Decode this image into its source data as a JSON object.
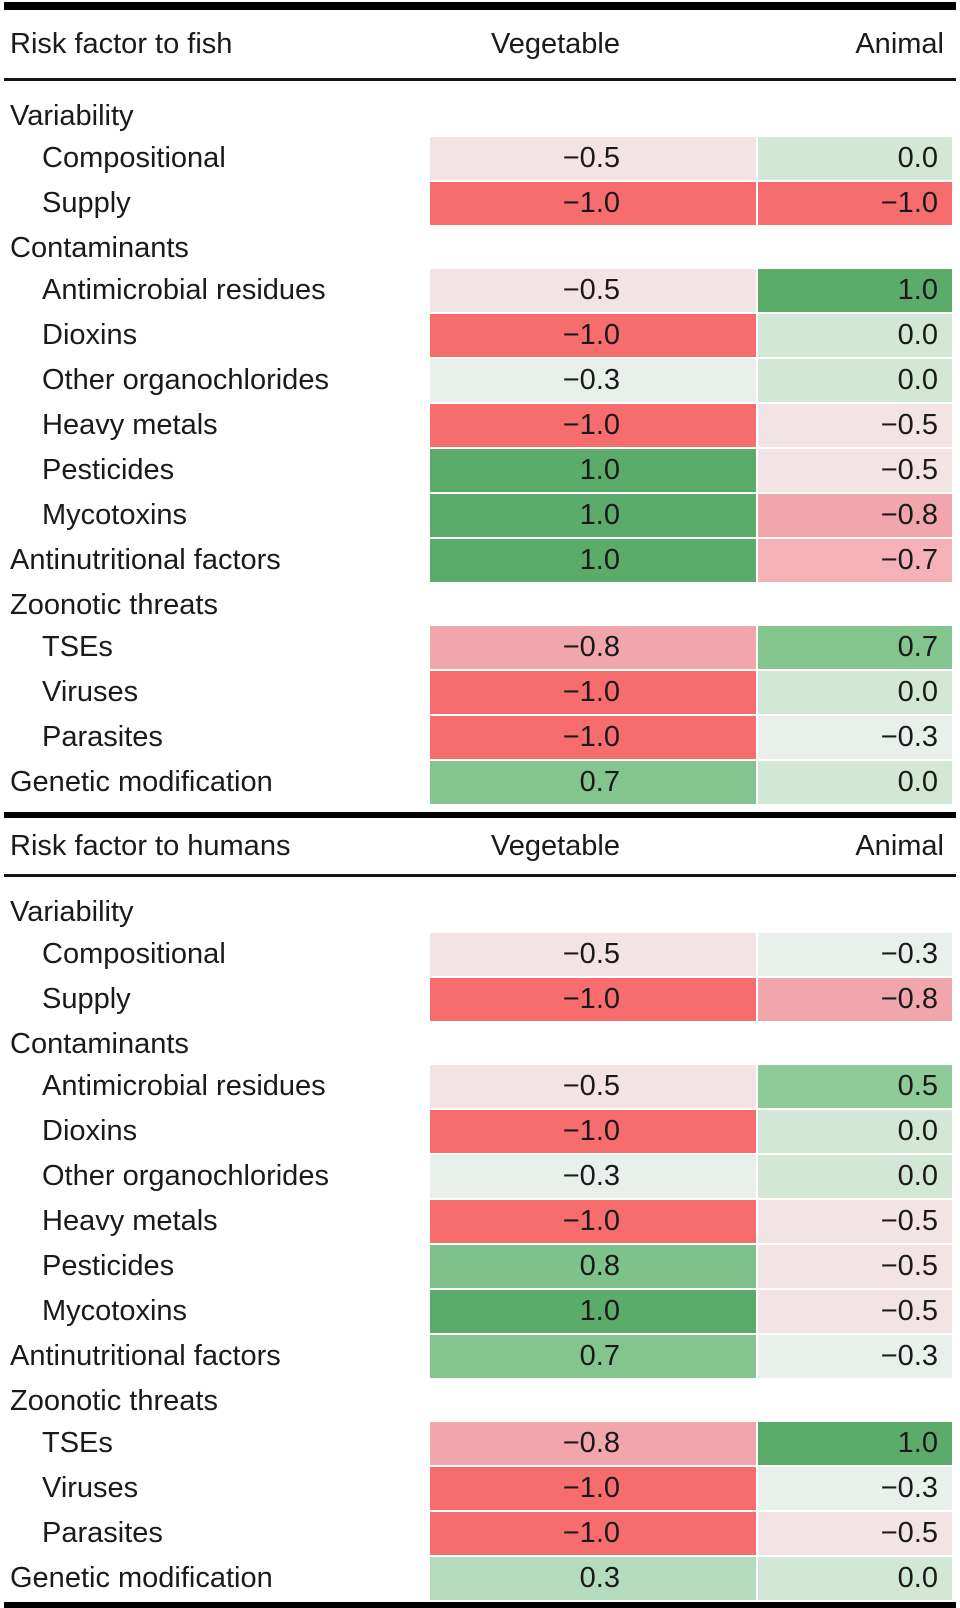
{
  "page": {
    "background": "#ffffff",
    "text_color": "#1a1a1a",
    "rule_color": "#000000"
  },
  "value_colors": {
    "−1.0": "#f76d6d",
    "−0.8": "#f1a6ab",
    "−0.7": "#f5b2b6",
    "−0.5": "#f2e3e4",
    "−0.3": "#e9efeb",
    "0.0": "#d2e7d6",
    "0.3": "#b4dbbc",
    "0.5": "#8fca99",
    "0.7": "#83c48f",
    "0.8": "#7dc28a",
    "1.0": "#5bac6a"
  },
  "tables": [
    {
      "header": {
        "risk_label": "Risk factor to fish",
        "col1": "Vegetable",
        "col2": "Animal"
      },
      "rows": [
        {
          "type": "group",
          "label": "Variability"
        },
        {
          "type": "data",
          "indent": true,
          "label": "Compositional",
          "vegetable": "−0.5",
          "animal": "0.0"
        },
        {
          "type": "data",
          "indent": true,
          "label": "Supply",
          "vegetable": "−1.0",
          "animal": "−1.0"
        },
        {
          "type": "group",
          "label": "Contaminants"
        },
        {
          "type": "data",
          "indent": true,
          "label": "Antimicrobial residues",
          "vegetable": "−0.5",
          "animal": "1.0"
        },
        {
          "type": "data",
          "indent": true,
          "label": "Dioxins",
          "vegetable": "−1.0",
          "animal": "0.0"
        },
        {
          "type": "data",
          "indent": true,
          "label": "Other organochlorides",
          "vegetable": "−0.3",
          "animal": "0.0"
        },
        {
          "type": "data",
          "indent": true,
          "label": "Heavy metals",
          "vegetable": "−1.0",
          "animal": "−0.5"
        },
        {
          "type": "data",
          "indent": true,
          "label": "Pesticides",
          "vegetable": "1.0",
          "animal": "−0.5"
        },
        {
          "type": "data",
          "indent": true,
          "label": "Mycotoxins",
          "vegetable": "1.0",
          "animal": "−0.8"
        },
        {
          "type": "data",
          "indent": false,
          "label": "Antinutritional factors",
          "vegetable": "1.0",
          "animal": "−0.7"
        },
        {
          "type": "group",
          "label": "Zoonotic threats"
        },
        {
          "type": "data",
          "indent": true,
          "label": "TSEs",
          "vegetable": "−0.8",
          "animal": "0.7"
        },
        {
          "type": "data",
          "indent": true,
          "label": "Viruses",
          "vegetable": "−1.0",
          "animal": "0.0"
        },
        {
          "type": "data",
          "indent": true,
          "label": "Parasites",
          "vegetable": "−1.0",
          "animal": "−0.3"
        },
        {
          "type": "data",
          "indent": false,
          "label": "Genetic modification",
          "vegetable": "0.7",
          "animal": "0.0"
        }
      ]
    },
    {
      "header": {
        "risk_label": "Risk factor to humans",
        "col1": "Vegetable",
        "col2": "Animal"
      },
      "rows": [
        {
          "type": "group",
          "label": "Variability"
        },
        {
          "type": "data",
          "indent": true,
          "label": "Compositional",
          "vegetable": "−0.5",
          "animal": "−0.3"
        },
        {
          "type": "data",
          "indent": true,
          "label": "Supply",
          "vegetable": "−1.0",
          "animal": "−0.8"
        },
        {
          "type": "group",
          "label": "Contaminants"
        },
        {
          "type": "data",
          "indent": true,
          "label": "Antimicrobial residues",
          "vegetable": "−0.5",
          "animal": "0.5"
        },
        {
          "type": "data",
          "indent": true,
          "label": "Dioxins",
          "vegetable": "−1.0",
          "animal": "0.0"
        },
        {
          "type": "data",
          "indent": true,
          "label": "Other organochlorides",
          "vegetable": "−0.3",
          "animal": "0.0"
        },
        {
          "type": "data",
          "indent": true,
          "label": "Heavy metals",
          "vegetable": "−1.0",
          "animal": "−0.5"
        },
        {
          "type": "data",
          "indent": true,
          "label": "Pesticides",
          "vegetable": "0.8",
          "animal": "−0.5"
        },
        {
          "type": "data",
          "indent": true,
          "label": "Mycotoxins",
          "vegetable": "1.0",
          "animal": "−0.5"
        },
        {
          "type": "data",
          "indent": false,
          "label": "Antinutritional factors",
          "vegetable": "0.7",
          "animal": "−0.3"
        },
        {
          "type": "group",
          "label": "Zoonotic threats"
        },
        {
          "type": "data",
          "indent": true,
          "label": "TSEs",
          "vegetable": "−0.8",
          "animal": "1.0"
        },
        {
          "type": "data",
          "indent": true,
          "label": "Viruses",
          "vegetable": "−1.0",
          "animal": "−0.3"
        },
        {
          "type": "data",
          "indent": true,
          "label": "Parasites",
          "vegetable": "−1.0",
          "animal": "−0.5"
        },
        {
          "type": "data",
          "indent": false,
          "label": "Genetic modification",
          "vegetable": "0.3",
          "animal": "0.0"
        }
      ]
    }
  ]
}
